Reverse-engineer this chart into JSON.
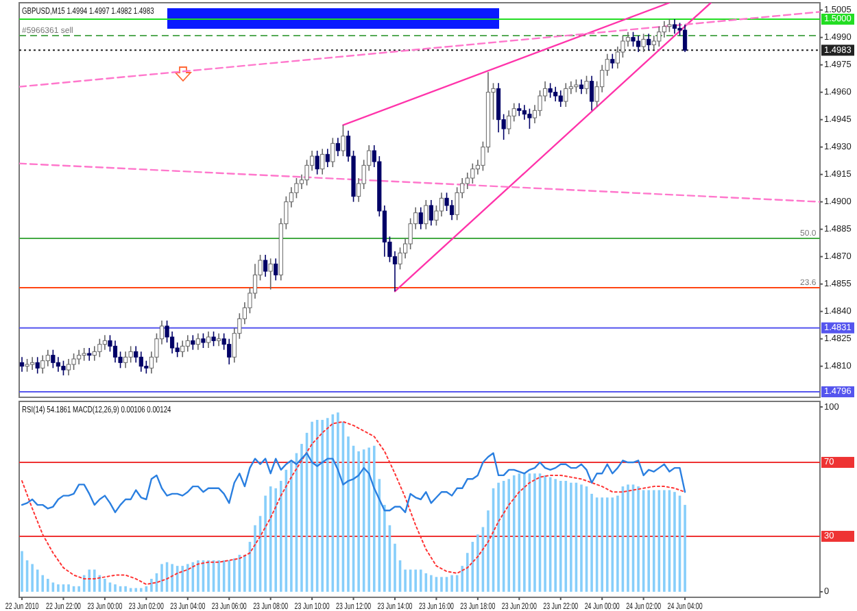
{
  "chart_data": [
    {
      "type": "candlestick",
      "title": "GBPUSD,M15  1.4994 1.4997 1.4982 1.4983",
      "tick_labels": "y",
      "xlim": [
        "2010-06-22T19:52",
        "2010-06-24T10:31"
      ],
      "ylim": [
        1.4793,
        1.5009
      ],
      "yticks": [
        1.5005,
        {
          "value": 1.499,
          "label": "1.4990"
        },
        1.4975,
        {
          "value": 1.496,
          "label": "1.4960"
        },
        1.4945,
        {
          "value": 1.493,
          "label": "1.4930"
        },
        1.4915,
        {
          "value": 1.49,
          "label": "1.4900"
        },
        1.4885,
        {
          "value": 1.487,
          "label": "1.4870"
        },
        1.4855,
        {
          "value": 1.484,
          "label": "1.4840"
        },
        1.4825,
        {
          "value": 1.481,
          "label": "1.4810"
        }
      ],
      "x": [
        "2010-06-22T20:00",
        "2010-06-22T20:15",
        "2010-06-22T20:30",
        "2010-06-22T20:45",
        "2010-06-22T21:00",
        "2010-06-22T21:15",
        "2010-06-22T21:30",
        "2010-06-22T21:45",
        "2010-06-22T22:00",
        "2010-06-22T22:15",
        "2010-06-22T22:30",
        "2010-06-22T22:45",
        "2010-06-22T23:00",
        "2010-06-22T23:15",
        "2010-06-22T23:30",
        "2010-06-22T23:45",
        "2010-06-23T00:00",
        "2010-06-23T00:15",
        "2010-06-23T00:30",
        "2010-06-23T00:45",
        "2010-06-23T01:00",
        "2010-06-23T01:15",
        "2010-06-23T01:30",
        "2010-06-23T01:45",
        "2010-06-23T02:00",
        "2010-06-23T02:15",
        "2010-06-23T02:30",
        "2010-06-23T02:45",
        "2010-06-23T03:00",
        "2010-06-23T03:15",
        "2010-06-23T03:30",
        "2010-06-23T03:45",
        "2010-06-23T04:00",
        "2010-06-23T04:15",
        "2010-06-23T04:30",
        "2010-06-23T04:45",
        "2010-06-23T05:00",
        "2010-06-23T05:15",
        "2010-06-23T05:30",
        "2010-06-23T05:45",
        "2010-06-23T06:00",
        "2010-06-23T06:15",
        "2010-06-23T06:30",
        "2010-06-23T06:45",
        "2010-06-23T07:00",
        "2010-06-23T07:15",
        "2010-06-23T07:30",
        "2010-06-23T07:45",
        "2010-06-23T08:00",
        "2010-06-23T08:15",
        "2010-06-23T08:30",
        "2010-06-23T08:45",
        "2010-06-23T09:00",
        "2010-06-23T09:15",
        "2010-06-23T09:30",
        "2010-06-23T09:45",
        "2010-06-23T10:00",
        "2010-06-23T10:15",
        "2010-06-23T10:30",
        "2010-06-23T10:45",
        "2010-06-23T11:00",
        "2010-06-23T11:15",
        "2010-06-23T11:30",
        "2010-06-23T11:45",
        "2010-06-23T12:00",
        "2010-06-23T12:15",
        "2010-06-23T12:30",
        "2010-06-23T12:45",
        "2010-06-23T13:00",
        "2010-06-23T13:15",
        "2010-06-23T13:30",
        "2010-06-23T13:45",
        "2010-06-23T14:00",
        "2010-06-23T14:15",
        "2010-06-23T14:30",
        "2010-06-23T14:45",
        "2010-06-23T15:00",
        "2010-06-23T15:15",
        "2010-06-23T15:30",
        "2010-06-23T15:45",
        "2010-06-23T16:00",
        "2010-06-23T16:15",
        "2010-06-23T16:30",
        "2010-06-23T16:45",
        "2010-06-23T17:00",
        "2010-06-23T17:15",
        "2010-06-23T17:30",
        "2010-06-23T17:45",
        "2010-06-23T18:00",
        "2010-06-23T18:15",
        "2010-06-23T18:30",
        "2010-06-23T18:45",
        "2010-06-23T19:00",
        "2010-06-23T19:15",
        "2010-06-23T19:30",
        "2010-06-23T19:45",
        "2010-06-23T20:00",
        "2010-06-23T20:15",
        "2010-06-23T20:30",
        "2010-06-23T20:45",
        "2010-06-23T21:00",
        "2010-06-23T21:15",
        "2010-06-23T21:30",
        "2010-06-23T21:45",
        "2010-06-23T22:00",
        "2010-06-23T22:15",
        "2010-06-23T22:30",
        "2010-06-23T22:45",
        "2010-06-23T23:00",
        "2010-06-23T23:15",
        "2010-06-23T23:30",
        "2010-06-23T23:45",
        "2010-06-24T00:00",
        "2010-06-24T00:15",
        "2010-06-24T00:30",
        "2010-06-24T00:45",
        "2010-06-24T01:00",
        "2010-06-24T01:15",
        "2010-06-24T01:30",
        "2010-06-24T01:45",
        "2010-06-24T02:00",
        "2010-06-24T02:15",
        "2010-06-24T02:30",
        "2010-06-24T02:45",
        "2010-06-24T03:00",
        "2010-06-24T03:15",
        "2010-06-24T03:30",
        "2010-06-24T03:45",
        "2010-06-24T04:00"
      ],
      "ohlc": [
        [
          1.4812,
          1.4815,
          1.4807,
          1.481
        ],
        [
          1.481,
          1.4814,
          1.4807,
          1.4811
        ],
        [
          1.4811,
          1.4815,
          1.4808,
          1.4812
        ],
        [
          1.4812,
          1.4815,
          1.4806,
          1.4809
        ],
        [
          1.4809,
          1.4816,
          1.4806,
          1.4813
        ],
        [
          1.4813,
          1.4819,
          1.481,
          1.4816
        ],
        [
          1.4816,
          1.4819,
          1.4809,
          1.4812
        ],
        [
          1.4812,
          1.4815,
          1.4807,
          1.481
        ],
        [
          1.481,
          1.4813,
          1.4805,
          1.4808
        ],
        [
          1.4808,
          1.4814,
          1.4805,
          1.4811
        ],
        [
          1.4811,
          1.4817,
          1.4808,
          1.4814
        ],
        [
          1.4814,
          1.4819,
          1.4811,
          1.4816
        ],
        [
          1.4816,
          1.482,
          1.4813,
          1.4817
        ],
        [
          1.4817,
          1.482,
          1.4813,
          1.4816
        ],
        [
          1.4816,
          1.4821,
          1.4813,
          1.4818
        ],
        [
          1.4818,
          1.4825,
          1.4815,
          1.4822
        ],
        [
          1.4822,
          1.4827,
          1.4819,
          1.4824
        ],
        [
          1.4824,
          1.4827,
          1.4818,
          1.4821
        ],
        [
          1.4821,
          1.4824,
          1.4812,
          1.4815
        ],
        [
          1.4815,
          1.4818,
          1.4809,
          1.4812
        ],
        [
          1.4812,
          1.4818,
          1.4809,
          1.4815
        ],
        [
          1.4815,
          1.4821,
          1.4812,
          1.4818
        ],
        [
          1.4818,
          1.4821,
          1.4812,
          1.4815
        ],
        [
          1.4815,
          1.4818,
          1.4807,
          1.481
        ],
        [
          1.481,
          1.4813,
          1.4806,
          1.4809
        ],
        [
          1.4809,
          1.4818,
          1.4806,
          1.4815
        ],
        [
          1.4815,
          1.4828,
          1.4812,
          1.4825
        ],
        [
          1.4825,
          1.4835,
          1.4822,
          1.4832
        ],
        [
          1.4832,
          1.4835,
          1.4823,
          1.4826
        ],
        [
          1.4826,
          1.4829,
          1.4817,
          1.482
        ],
        [
          1.482,
          1.4823,
          1.4815,
          1.4818
        ],
        [
          1.4818,
          1.4824,
          1.4815,
          1.4821
        ],
        [
          1.4821,
          1.4827,
          1.4818,
          1.4824
        ],
        [
          1.4824,
          1.4827,
          1.4819,
          1.4822
        ],
        [
          1.4822,
          1.4828,
          1.4819,
          1.4825
        ],
        [
          1.4825,
          1.4828,
          1.482,
          1.4823
        ],
        [
          1.4823,
          1.4829,
          1.482,
          1.4826
        ],
        [
          1.4826,
          1.4829,
          1.4821,
          1.4824
        ],
        [
          1.4824,
          1.4828,
          1.4821,
          1.4825
        ],
        [
          1.4825,
          1.4828,
          1.4819,
          1.4822
        ],
        [
          1.4822,
          1.4825,
          1.4811,
          1.4815
        ],
        [
          1.4815,
          1.4831,
          1.4812,
          1.4828
        ],
        [
          1.4828,
          1.4839,
          1.4825,
          1.4836
        ],
        [
          1.4836,
          1.4845,
          1.4833,
          1.4842
        ],
        [
          1.4842,
          1.4853,
          1.4839,
          1.485
        ],
        [
          1.485,
          1.4866,
          1.4847,
          1.486
        ],
        [
          1.486,
          1.4871,
          1.4857,
          1.4868
        ],
        [
          1.4868,
          1.4871,
          1.4859,
          1.4862
        ],
        [
          1.4862,
          1.4869,
          1.4852,
          1.4866
        ],
        [
          1.4866,
          1.4869,
          1.4857,
          1.486
        ],
        [
          1.486,
          1.4891,
          1.4857,
          1.4888
        ],
        [
          1.4888,
          1.4903,
          1.4885,
          1.49
        ],
        [
          1.49,
          1.4908,
          1.4897,
          1.4905
        ],
        [
          1.4905,
          1.4913,
          1.4902,
          1.491
        ],
        [
          1.491,
          1.4915,
          1.4907,
          1.4912
        ],
        [
          1.4912,
          1.4923,
          1.4909,
          1.492
        ],
        [
          1.492,
          1.4928,
          1.4917,
          1.4925
        ],
        [
          1.4925,
          1.4928,
          1.4915,
          1.4918
        ],
        [
          1.4918,
          1.4929,
          1.4915,
          1.4926
        ],
        [
          1.4926,
          1.4929,
          1.4919,
          1.4922
        ],
        [
          1.4922,
          1.4935,
          1.4919,
          1.4932
        ],
        [
          1.4932,
          1.4935,
          1.4925,
          1.4928
        ],
        [
          1.4928,
          1.4942,
          1.4925,
          1.4936
        ],
        [
          1.4936,
          1.4939,
          1.4922,
          1.4925
        ],
        [
          1.4925,
          1.4928,
          1.49,
          1.4903
        ],
        [
          1.4903,
          1.4913,
          1.49,
          1.491
        ],
        [
          1.491,
          1.4923,
          1.4907,
          1.492
        ],
        [
          1.492,
          1.4931,
          1.4917,
          1.4928
        ],
        [
          1.4928,
          1.4931,
          1.4919,
          1.4922
        ],
        [
          1.4922,
          1.4925,
          1.4892,
          1.4895
        ],
        [
          1.4895,
          1.4898,
          1.487,
          1.4878
        ],
        [
          1.4878,
          1.4881,
          1.4867,
          1.487
        ],
        [
          1.487,
          1.4873,
          1.4851,
          1.4866
        ],
        [
          1.4866,
          1.4875,
          1.4863,
          1.4872
        ],
        [
          1.4872,
          1.488,
          1.4869,
          1.4877
        ],
        [
          1.4877,
          1.4891,
          1.4874,
          1.4888
        ],
        [
          1.4888,
          1.4897,
          1.4885,
          1.4894
        ],
        [
          1.4894,
          1.4897,
          1.4885,
          1.4888
        ],
        [
          1.4888,
          1.4901,
          1.4885,
          1.4898
        ],
        [
          1.4898,
          1.4901,
          1.4887,
          1.489
        ],
        [
          1.489,
          1.4898,
          1.4887,
          1.4895
        ],
        [
          1.4895,
          1.4905,
          1.4892,
          1.4902
        ],
        [
          1.4902,
          1.4905,
          1.4895,
          1.4898
        ],
        [
          1.4898,
          1.4901,
          1.489,
          1.4893
        ],
        [
          1.4893,
          1.4908,
          1.489,
          1.4905
        ],
        [
          1.4905,
          1.4913,
          1.4902,
          1.491
        ],
        [
          1.491,
          1.4916,
          1.4907,
          1.4913
        ],
        [
          1.4913,
          1.4921,
          1.491,
          1.4918
        ],
        [
          1.4918,
          1.4923,
          1.4915,
          1.492
        ],
        [
          1.492,
          1.4933,
          1.4917,
          1.493
        ],
        [
          1.493,
          1.4971,
          1.4927,
          1.496
        ],
        [
          1.496,
          1.4965,
          1.4945,
          1.4962
        ],
        [
          1.4962,
          1.4965,
          1.4938,
          1.4945
        ],
        [
          1.4945,
          1.4948,
          1.4934,
          1.494
        ],
        [
          1.494,
          1.495,
          1.4937,
          1.4947
        ],
        [
          1.4947,
          1.4954,
          1.4944,
          1.4951
        ],
        [
          1.4951,
          1.4954,
          1.4947,
          1.495
        ],
        [
          1.495,
          1.4953,
          1.4945,
          1.4948
        ],
        [
          1.4948,
          1.4951,
          1.494,
          1.4946
        ],
        [
          1.4946,
          1.4953,
          1.4943,
          1.495
        ],
        [
          1.495,
          1.4961,
          1.4947,
          1.4958
        ],
        [
          1.4958,
          1.4966,
          1.4955,
          1.4962
        ],
        [
          1.4962,
          1.4965,
          1.4957,
          1.496
        ],
        [
          1.496,
          1.4963,
          1.4955,
          1.4958
        ],
        [
          1.4958,
          1.4961,
          1.4952,
          1.4955
        ],
        [
          1.4955,
          1.4965,
          1.4952,
          1.4962
        ],
        [
          1.4962,
          1.4966,
          1.4959,
          1.4963
        ],
        [
          1.4963,
          1.4967,
          1.496,
          1.4964
        ],
        [
          1.4964,
          1.4967,
          1.4959,
          1.4962
        ],
        [
          1.4962,
          1.4969,
          1.4959,
          1.4966
        ],
        [
          1.4966,
          1.4969,
          1.495,
          1.4955
        ],
        [
          1.4955,
          1.4966,
          1.4952,
          1.4963
        ],
        [
          1.4963,
          1.4975,
          1.496,
          1.4972
        ],
        [
          1.4972,
          1.4981,
          1.4969,
          1.4978
        ],
        [
          1.4978,
          1.4981,
          1.4973,
          1.4976
        ],
        [
          1.4976,
          1.4985,
          1.4973,
          1.4982
        ],
        [
          1.4982,
          1.4991,
          1.4979,
          1.4988
        ],
        [
          1.4988,
          1.4993,
          1.4985,
          1.499
        ],
        [
          1.499,
          1.4993,
          1.4985,
          1.4988
        ],
        [
          1.4988,
          1.4991,
          1.4982,
          1.4985
        ],
        [
          1.4985,
          1.4992,
          1.4982,
          1.4989
        ],
        [
          1.4989,
          1.4992,
          1.4983,
          1.4986
        ],
        [
          1.4986,
          1.4991,
          1.4983,
          1.4988
        ],
        [
          1.4988,
          1.4996,
          1.4985,
          1.4993
        ],
        [
          1.4993,
          1.4999,
          1.499,
          1.4996
        ],
        [
          1.4996,
          1.5,
          1.4993,
          1.4997
        ],
        [
          1.4997,
          1.5,
          1.4992,
          1.4995
        ],
        [
          1.4995,
          1.4998,
          1.4991,
          1.4994
        ],
        [
          1.4994,
          1.4997,
          1.4982,
          1.4983
        ]
      ],
      "series": [
        {
          "type": "line",
          "color": "#ff33aa",
          "line_style": "solid",
          "x": [
            "2010-06-23T11:30",
            "2010-06-24T03:15"
          ],
          "values": [
            1.4942,
            1.5009
          ]
        },
        {
          "type": "line",
          "color": "#ff33aa",
          "line_style": "solid",
          "x": [
            "2010-06-23T14:00",
            "2010-06-24T05:15"
          ],
          "values": [
            1.4851,
            1.5009
          ]
        },
        {
          "type": "line",
          "color": "#ff77cc",
          "line_style": "dashed",
          "x": [
            "2010-06-22T19:52",
            "2010-06-24T10:31"
          ],
          "values": [
            1.4963,
            1.5004
          ]
        },
        {
          "type": "line",
          "color": "#ff77cc",
          "line_style": "dashed",
          "x": [
            "2010-06-22T19:52",
            "2010-06-24T10:31"
          ],
          "values": [
            1.4921,
            1.49
          ]
        }
      ],
      "ref_lines": [
        {
          "axis": "y",
          "value": 1.5,
          "label": "1.5000",
          "color": "#22dd22",
          "line_style": "solid"
        },
        {
          "axis": "y",
          "value": 1.4991,
          "color": "#55aa55",
          "line_style": "dashed"
        },
        {
          "axis": "y",
          "value": 1.4983,
          "label": "1.4983",
          "color": "#222222",
          "line_style": "dotted"
        },
        {
          "axis": "y",
          "value": 1.488,
          "color": "#44aa44",
          "line_style": "solid"
        },
        {
          "axis": "y",
          "value": 1.4853,
          "color": "#ff4411",
          "line_style": "solid"
        },
        {
          "axis": "y",
          "value": 1.4831,
          "label": "1.4831",
          "color": "#5555ee",
          "line_style": "solid"
        },
        {
          "axis": "y",
          "value": 1.4796,
          "label": "1.4796",
          "color": "#5555ee",
          "line_style": "solid"
        }
      ],
      "annotations": [
        {
          "text": "#5966361 sell",
          "x": "2010-06-22T20:00",
          "y": 1.4991
        },
        {
          "text": "50.0",
          "x": "2010-06-24T10:20",
          "y": 1.488
        },
        {
          "text": "23.6",
          "x": "2010-06-24T10:20",
          "y": 1.4853
        }
      ]
    },
    {
      "type": "line",
      "title": "RSI(14) 54.1861  MACD(12,26,9) 0.00106 0.00124",
      "xlim": [
        "2010-06-22T19:52",
        "2010-06-24T10:31"
      ],
      "ylim": [
        -3,
        103
      ],
      "yticks": [
        0,
        100
      ],
      "xticks": [
        {
          "value": "2010-06-22T20:00",
          "label": "22 Jun 2010"
        },
        {
          "value": "2010-06-22T22:00",
          "label": "22 Jun 22:00"
        },
        {
          "value": "2010-06-23T00:00",
          "label": "23 Jun 00:00"
        },
        {
          "value": "2010-06-23T02:00",
          "label": "23 Jun 02:00"
        },
        {
          "value": "2010-06-23T04:00",
          "label": "23 Jun 04:00"
        },
        {
          "value": "2010-06-23T06:00",
          "label": "23 Jun 06:00"
        },
        {
          "value": "2010-06-23T08:00",
          "label": "23 Jun 08:00"
        },
        {
          "value": "2010-06-23T10:00",
          "label": "23 Jun 10:00"
        },
        {
          "value": "2010-06-23T12:00",
          "label": "23 Jun 12:00"
        },
        {
          "value": "2010-06-23T14:00",
          "label": "23 Jun 14:00"
        },
        {
          "value": "2010-06-23T16:00",
          "label": "23 Jun 16:00"
        },
        {
          "value": "2010-06-23T18:00",
          "label": "23 Jun 18:00"
        },
        {
          "value": "2010-06-23T20:00",
          "label": "23 Jun 20:00"
        },
        {
          "value": "2010-06-23T22:00",
          "label": "23 Jun 22:00"
        },
        {
          "value": "2010-06-24T00:00",
          "label": "24 Jun 00:00"
        },
        {
          "value": "2010-06-24T02:00",
          "label": "24 Jun 02:00"
        },
        {
          "value": "2010-06-24T04:00",
          "label": "24 Jun 04:00"
        }
      ],
      "x": [
        "2010-06-22T20:00",
        "2010-06-22T20:15",
        "2010-06-22T20:30",
        "2010-06-22T20:45",
        "2010-06-22T21:00",
        "2010-06-22T21:15",
        "2010-06-22T21:30",
        "2010-06-22T21:45",
        "2010-06-22T22:00",
        "2010-06-22T22:15",
        "2010-06-22T22:30",
        "2010-06-22T22:45",
        "2010-06-22T23:00",
        "2010-06-22T23:15",
        "2010-06-22T23:30",
        "2010-06-22T23:45",
        "2010-06-23T00:00",
        "2010-06-23T00:15",
        "2010-06-23T00:30",
        "2010-06-23T00:45",
        "2010-06-23T01:00",
        "2010-06-23T01:15",
        "2010-06-23T01:30",
        "2010-06-23T01:45",
        "2010-06-23T02:00",
        "2010-06-23T02:15",
        "2010-06-23T02:30",
        "2010-06-23T02:45",
        "2010-06-23T03:00",
        "2010-06-23T03:15",
        "2010-06-23T03:30",
        "2010-06-23T03:45",
        "2010-06-23T04:00",
        "2010-06-23T04:15",
        "2010-06-23T04:30",
        "2010-06-23T04:45",
        "2010-06-23T05:00",
        "2010-06-23T05:15",
        "2010-06-23T05:30",
        "2010-06-23T05:45",
        "2010-06-23T06:00",
        "2010-06-23T06:15",
        "2010-06-23T06:30",
        "2010-06-23T06:45",
        "2010-06-23T07:00",
        "2010-06-23T07:15",
        "2010-06-23T07:30",
        "2010-06-23T07:45",
        "2010-06-23T08:00",
        "2010-06-23T08:15",
        "2010-06-23T08:30",
        "2010-06-23T08:45",
        "2010-06-23T09:00",
        "2010-06-23T09:15",
        "2010-06-23T09:30",
        "2010-06-23T09:45",
        "2010-06-23T10:00",
        "2010-06-23T10:15",
        "2010-06-23T10:30",
        "2010-06-23T10:45",
        "2010-06-23T11:00",
        "2010-06-23T11:15",
        "2010-06-23T11:30",
        "2010-06-23T11:45",
        "2010-06-23T12:00",
        "2010-06-23T12:15",
        "2010-06-23T12:30",
        "2010-06-23T12:45",
        "2010-06-23T13:00",
        "2010-06-23T13:15",
        "2010-06-23T13:30",
        "2010-06-23T13:45",
        "2010-06-23T14:00",
        "2010-06-23T14:15",
        "2010-06-23T14:30",
        "2010-06-23T14:45",
        "2010-06-23T15:00",
        "2010-06-23T15:15",
        "2010-06-23T15:30",
        "2010-06-23T15:45",
        "2010-06-23T16:00",
        "2010-06-23T16:15",
        "2010-06-23T16:30",
        "2010-06-23T16:45",
        "2010-06-23T17:00",
        "2010-06-23T17:15",
        "2010-06-23T17:30",
        "2010-06-23T17:45",
        "2010-06-23T18:00",
        "2010-06-23T18:15",
        "2010-06-23T18:30",
        "2010-06-23T18:45",
        "2010-06-23T19:00",
        "2010-06-23T19:15",
        "2010-06-23T19:30",
        "2010-06-23T19:45",
        "2010-06-23T20:00",
        "2010-06-23T20:15",
        "2010-06-23T20:30",
        "2010-06-23T20:45",
        "2010-06-23T21:00",
        "2010-06-23T21:15",
        "2010-06-23T21:30",
        "2010-06-23T21:45",
        "2010-06-23T22:00",
        "2010-06-23T22:15",
        "2010-06-23T22:30",
        "2010-06-23T22:45",
        "2010-06-23T23:00",
        "2010-06-23T23:15",
        "2010-06-23T23:30",
        "2010-06-23T23:45",
        "2010-06-24T00:00",
        "2010-06-24T00:15",
        "2010-06-24T00:30",
        "2010-06-24T00:45",
        "2010-06-24T01:00",
        "2010-06-24T01:15",
        "2010-06-24T01:30",
        "2010-06-24T01:45",
        "2010-06-24T02:00",
        "2010-06-24T02:15",
        "2010-06-24T02:30",
        "2010-06-24T02:45",
        "2010-06-24T03:00",
        "2010-06-24T03:15",
        "2010-06-24T03:30",
        "2010-06-24T03:45",
        "2010-06-24T04:00"
      ],
      "series": [
        {
          "type": "bar",
          "color": "#87cefa",
          "values": [
            22,
            17,
            15,
            12,
            9,
            7,
            5,
            4,
            4,
            4,
            3,
            3,
            9,
            12,
            12,
            9,
            7,
            5,
            4,
            3,
            3,
            2,
            2,
            2,
            3,
            7,
            10,
            15,
            16,
            15,
            14,
            14,
            15,
            16,
            17,
            17,
            17,
            17,
            17,
            17,
            17,
            18,
            20,
            20,
            27,
            36,
            41,
            52,
            57,
            56,
            60,
            66,
            71,
            75,
            80,
            86,
            92,
            93,
            93,
            94,
            96,
            97,
            92,
            84,
            79,
            76,
            77,
            78,
            79,
            61,
            47,
            36,
            26,
            17,
            12,
            12,
            12,
            12,
            10,
            9,
            8,
            8,
            8,
            9,
            9,
            14,
            21,
            27,
            31,
            35,
            44,
            56,
            59,
            60,
            61,
            63,
            64,
            64,
            64,
            64,
            64,
            63,
            62,
            61,
            60,
            60,
            59,
            59,
            58,
            57,
            53,
            51,
            51,
            51,
            51,
            52,
            57,
            58,
            58,
            57,
            55,
            55,
            55,
            55,
            55,
            55,
            54,
            52,
            47
          ]
        },
        {
          "type": "line",
          "color": "#ff3333",
          "line_style": "dotted",
          "x": [
            "2010-06-22T20:00",
            "2010-06-22T20:30",
            "2010-06-22T21:00",
            "2010-06-22T21:30",
            "2010-06-22T22:00",
            "2010-06-22T22:30",
            "2010-06-22T23:00",
            "2010-06-22T23:30",
            "2010-06-23T00:00",
            "2010-06-23T00:30",
            "2010-06-23T01:00",
            "2010-06-23T01:30",
            "2010-06-23T02:00",
            "2010-06-23T02:30",
            "2010-06-23T03:00",
            "2010-06-23T03:30",
            "2010-06-23T04:00",
            "2010-06-23T04:30",
            "2010-06-23T05:00",
            "2010-06-23T05:30",
            "2010-06-23T06:00",
            "2010-06-23T06:30",
            "2010-06-23T07:00",
            "2010-06-23T07:30",
            "2010-06-23T08:00",
            "2010-06-23T08:30",
            "2010-06-23T09:00",
            "2010-06-23T09:30",
            "2010-06-23T10:00",
            "2010-06-23T10:30",
            "2010-06-23T11:00",
            "2010-06-23T11:30",
            "2010-06-23T12:00",
            "2010-06-23T12:30",
            "2010-06-23T13:00",
            "2010-06-23T13:30",
            "2010-06-23T14:00",
            "2010-06-23T14:30",
            "2010-06-23T15:00",
            "2010-06-23T15:30",
            "2010-06-23T16:00",
            "2010-06-23T16:30",
            "2010-06-23T17:00",
            "2010-06-23T17:30",
            "2010-06-23T18:00",
            "2010-06-23T18:30",
            "2010-06-23T19:00",
            "2010-06-23T19:30",
            "2010-06-23T20:00",
            "2010-06-23T20:30",
            "2010-06-23T21:00",
            "2010-06-23T21:30",
            "2010-06-23T22:00",
            "2010-06-23T22:30",
            "2010-06-23T23:00",
            "2010-06-23T23:30",
            "2010-06-24T00:00",
            "2010-06-24T00:30",
            "2010-06-24T01:00",
            "2010-06-24T01:30",
            "2010-06-24T02:00",
            "2010-06-24T02:30",
            "2010-06-24T03:00",
            "2010-06-24T03:30",
            "2010-06-24T04:00"
          ],
          "values": [
            60,
            45,
            31,
            21,
            13,
            9,
            7,
            7,
            8,
            9,
            9,
            7,
            4,
            5,
            7,
            10,
            12,
            15,
            16,
            16,
            17,
            18,
            21,
            30,
            40,
            52,
            62,
            71,
            80,
            86,
            91,
            92,
            90,
            87,
            84,
            76,
            64,
            51,
            36,
            23,
            14,
            11,
            10,
            13,
            19,
            27,
            38,
            47,
            54,
            59,
            62,
            63,
            63,
            62,
            61,
            59,
            57,
            54,
            54,
            55,
            56,
            57,
            57,
            56,
            54
          ]
        },
        {
          "type": "line",
          "color": "#2a7fe0",
          "line_style": "solid",
          "values": [
            47,
            48,
            50,
            47,
            47,
            45,
            46,
            50,
            52,
            52,
            53,
            58,
            58,
            53,
            47,
            50,
            52,
            48,
            43,
            47,
            50,
            50,
            55,
            51,
            50,
            61,
            63,
            56,
            52,
            53,
            53,
            52,
            54,
            57,
            57,
            54,
            56,
            56,
            56,
            53,
            48,
            59,
            64,
            57,
            67,
            72,
            69,
            72,
            64,
            72,
            66,
            69,
            71,
            69,
            72,
            75,
            70,
            68,
            70,
            72,
            72,
            66,
            58,
            60,
            61,
            63,
            67,
            64,
            56,
            50,
            44,
            44,
            46,
            46,
            43,
            53,
            51,
            50,
            54,
            48,
            51,
            54,
            54,
            52,
            56,
            56,
            61,
            61,
            63,
            70,
            73,
            75,
            63,
            63,
            66,
            66,
            65,
            64,
            66,
            67,
            70,
            67,
            66,
            67,
            69,
            69,
            67,
            67,
            69,
            66,
            59,
            64,
            64,
            69,
            64,
            67,
            71,
            70,
            70,
            71,
            63,
            66,
            65,
            67,
            69,
            65,
            67,
            67,
            54
          ]
        }
      ],
      "ref_lines": [
        {
          "axis": "y",
          "value": 70,
          "label": "70",
          "color": "#ee3333",
          "line_style": "solid"
        },
        {
          "axis": "y",
          "value": 30,
          "label": "30",
          "color": "#ee3333",
          "line_style": "solid"
        }
      ]
    }
  ]
}
